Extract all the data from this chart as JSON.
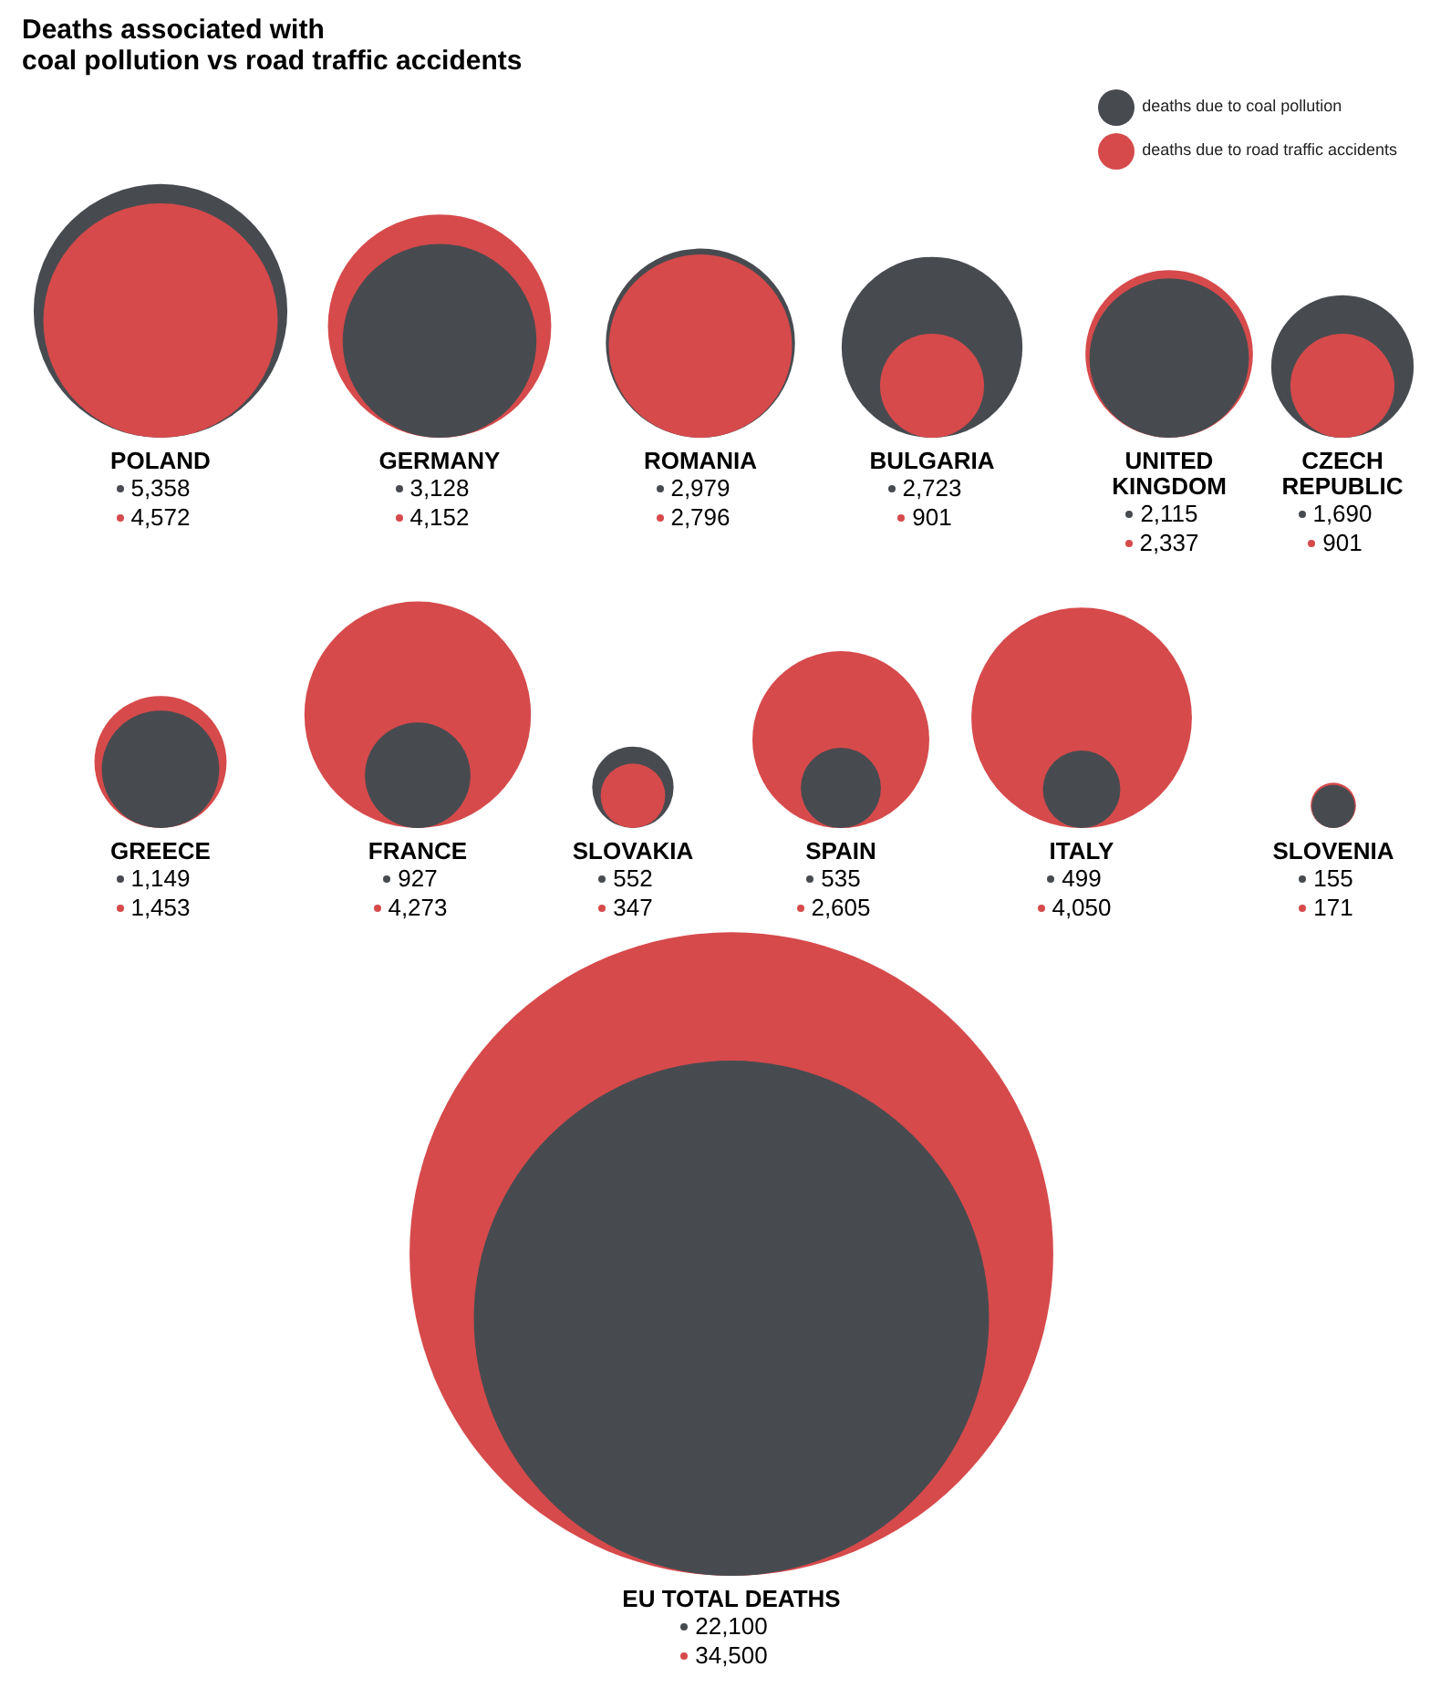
{
  "chart_data": {
    "type": "other",
    "title": "Deaths associated with\ncoal pollution vs road traffic accidents",
    "categories": [
      "POLAND",
      "GERMANY",
      "ROMANIA",
      "BULGARIA",
      "UNITED KINGDOM",
      "CZECH REPUBLIC",
      "GREECE",
      "FRANCE",
      "SLOVAKIA",
      "SPAIN",
      "ITALY",
      "SLOVENIA",
      "EU TOTAL DEATHS"
    ],
    "series": [
      {
        "name": "deaths due to coal pollution",
        "color": "#474b50",
        "values": [
          5358,
          3128,
          2979,
          2723,
          2115,
          1690,
          1149,
          927,
          552,
          535,
          499,
          155,
          22100
        ],
        "value_labels": [
          "5,358",
          "3,128",
          "2,979",
          "2,723",
          "2,115",
          "1,690",
          "1,149",
          "927",
          "552",
          "535",
          "499",
          "155",
          "22,100"
        ]
      },
      {
        "name": "deaths due to road traffic accidents",
        "color": "#d64a4b",
        "values": [
          4572,
          4152,
          2796,
          901,
          2337,
          901,
          1453,
          4273,
          347,
          2605,
          4050,
          171,
          34500
        ],
        "value_labels": [
          "4,572",
          "4,152",
          "2,796",
          "901",
          "2,337",
          "901",
          "1,453",
          "4,273",
          "347",
          "2,605",
          "4,050",
          "171",
          "34,500"
        ]
      }
    ],
    "legend": "top right"
  }
}
